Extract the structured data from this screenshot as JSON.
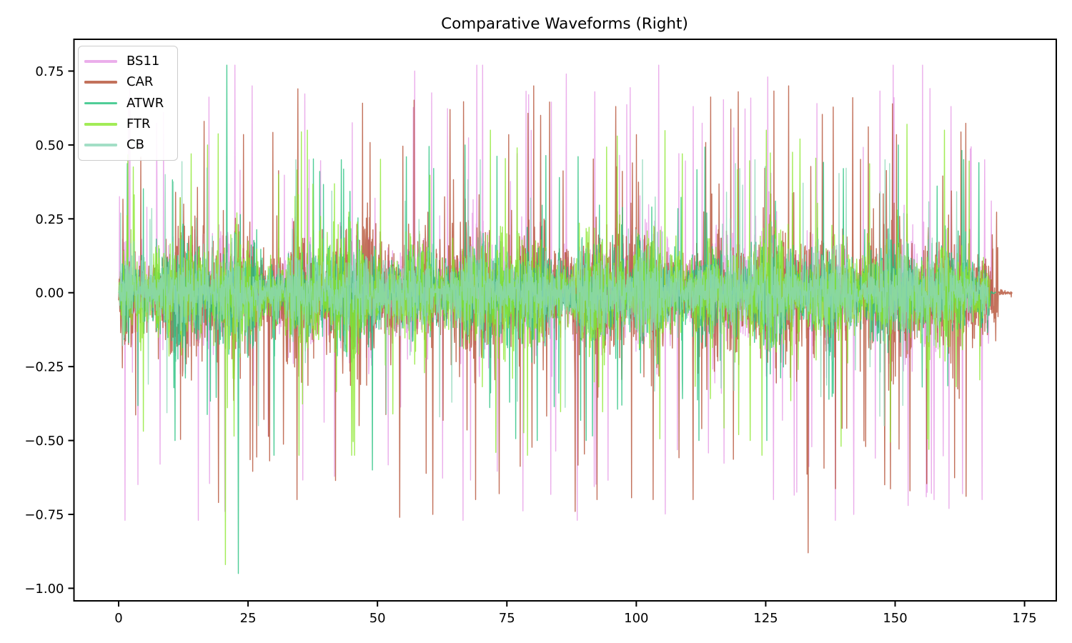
{
  "chart_data": {
    "type": "line",
    "title": "Comparative Waveforms (Right)",
    "xlabel": "",
    "ylabel": "",
    "xlim": [
      -8.63,
      181.13
    ],
    "ylim": [
      -1.0425,
      0.8575
    ],
    "x_ticks": [
      0,
      25,
      50,
      75,
      100,
      125,
      150,
      175
    ],
    "x_tick_labels": [
      "0",
      "25",
      "50",
      "75",
      "100",
      "125",
      "150",
      "175"
    ],
    "y_ticks": [
      0.75,
      0.5,
      0.25,
      0.0,
      -0.25,
      -0.5,
      -0.75,
      -1.0
    ],
    "y_tick_labels": [
      "0.75",
      "0.50",
      "0.25",
      "0.00",
      "−0.25",
      "−0.50",
      "−0.75",
      "−1.00"
    ],
    "grid": false,
    "legend_position": "upper left",
    "background": "#ffffff",
    "axis_color": "#000000",
    "tick_label_color": "#000000",
    "line_alpha": 0.8,
    "line_width": 1.4,
    "note": "Dense audio-like noise waveforms; per-series synthesis parameters and notable extreme spike values (read from plot) below.",
    "series": [
      {
        "name": "BS11",
        "color": "#e69ae6",
        "seed": 1101,
        "x_start": 0,
        "x_end": 168.8,
        "points_per_unit": 18,
        "sigma": 0.085,
        "spike_prob": 0.028,
        "spike_max": 0.77,
        "extremes": [
          [
            70.3,
            0.77
          ],
          [
            104.3,
            0.77
          ],
          [
            57.2,
            0.75
          ],
          [
            86.5,
            0.74
          ],
          [
            125.4,
            0.73
          ],
          [
            25.8,
            0.7
          ],
          [
            92.0,
            0.68
          ],
          [
            149.8,
            0.66
          ],
          [
            111.0,
            0.63
          ],
          [
            160.8,
            0.63
          ],
          [
            88.6,
            -0.77
          ],
          [
            142.0,
            -0.75
          ],
          [
            20.5,
            -0.74
          ],
          [
            152.5,
            -0.72
          ],
          [
            157.5,
            -0.7
          ],
          [
            126.5,
            -0.7
          ],
          [
            166.8,
            -0.7
          ],
          [
            163.0,
            -0.68
          ],
          [
            8.0,
            -0.58
          ],
          [
            167.3,
            0.45
          ]
        ]
      },
      {
        "name": "CAR",
        "color": "#b44f33",
        "seed": 2202,
        "x_start": 0,
        "x_end": 172.6,
        "points_per_unit": 18,
        "sigma": 0.105,
        "spike_prob": 0.03,
        "spike_max": 0.7,
        "tail_from": 169.9,
        "extremes": [
          [
            34.6,
            0.69
          ],
          [
            119.7,
            0.68
          ],
          [
            141.8,
            0.66
          ],
          [
            96.0,
            0.63
          ],
          [
            64.0,
            0.62
          ],
          [
            81.5,
            0.6
          ],
          [
            16.5,
            0.58
          ],
          [
            133.2,
            -0.88
          ],
          [
            54.3,
            -0.76
          ],
          [
            60.7,
            -0.75
          ],
          [
            88.2,
            -0.74
          ],
          [
            19.3,
            -0.71
          ],
          [
            111.0,
            -0.7
          ],
          [
            73.5,
            -0.68
          ],
          [
            148.0,
            -0.65
          ]
        ]
      },
      {
        "name": "ATWR",
        "color": "#23c17d",
        "seed": 3303,
        "x_start": 0,
        "x_end": 169.4,
        "points_per_unit": 18,
        "sigma": 0.075,
        "spike_prob": 0.02,
        "spike_max": 0.5,
        "tail_from": 168.4,
        "extremes": [
          [
            20.9,
            0.77
          ],
          [
            23.1,
            -0.95
          ],
          [
            43.0,
            0.45
          ],
          [
            166.2,
            0.44
          ],
          [
            55.6,
            0.46
          ],
          [
            49.0,
            -0.6
          ],
          [
            30.0,
            -0.55
          ],
          [
            140.0,
            0.42
          ]
        ]
      },
      {
        "name": "FTR",
        "color": "#8be72d",
        "seed": 4404,
        "x_start": 0,
        "x_end": 168.3,
        "points_per_unit": 18,
        "sigma": 0.08,
        "spike_prob": 0.02,
        "spike_max": 0.55,
        "extremes": [
          [
            20.6,
            -0.92
          ],
          [
            152.3,
            0.57
          ],
          [
            17.2,
            0.5
          ],
          [
            131.6,
            0.52
          ],
          [
            77.0,
            0.49
          ],
          [
            45.0,
            -0.55
          ],
          [
            122.0,
            -0.5
          ],
          [
            14.0,
            0.47
          ]
        ]
      },
      {
        "name": "CB",
        "color": "#8cd7b8",
        "seed": 5505,
        "x_start": 0,
        "x_end": 168.0,
        "points_per_unit": 18,
        "sigma": 0.06,
        "spike_prob": 0.015,
        "spike_max": 0.45,
        "extremes": [
          [
            27.0,
            -0.45
          ],
          [
            120.0,
            0.42
          ],
          [
            9.0,
            0.4
          ],
          [
            62.0,
            -0.42
          ]
        ]
      }
    ]
  }
}
